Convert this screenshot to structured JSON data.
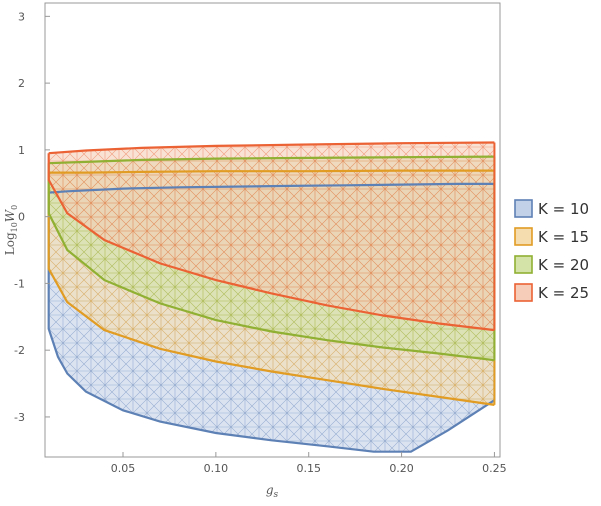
{
  "chart_data": {
    "type": "area",
    "xlabel": "g",
    "xlabel_sub": "s",
    "ylabel_prefix": "Log",
    "ylabel_sub": "10",
    "ylabel_var": "W",
    "ylabel_var_sub": "0",
    "xlim": [
      0.008,
      0.253
    ],
    "ylim": [
      -3.6,
      3.2
    ],
    "x_ticks": [
      0.05,
      0.1,
      0.15,
      0.2,
      0.25
    ],
    "x_tick_labels": [
      "0.05",
      "0.10",
      "0.15",
      "0.20",
      "0.25"
    ],
    "y_ticks": [
      -3,
      -2,
      -1,
      0,
      1,
      2,
      3
    ],
    "y_tick_labels": [
      "-3",
      "-2",
      "-1",
      "0",
      "1",
      "2",
      "3"
    ],
    "legend_position": "right",
    "series": [
      {
        "name": "K = 10",
        "color": "#5e81b5",
        "fill": "#c3d1e8",
        "upper": {
          "x": [
            0.01,
            0.02,
            0.05,
            0.08,
            0.11,
            0.14,
            0.17,
            0.2,
            0.23,
            0.25
          ],
          "y": [
            0.36,
            0.38,
            0.42,
            0.44,
            0.45,
            0.46,
            0.47,
            0.48,
            0.49,
            0.49
          ]
        },
        "lower": {
          "x": [
            0.01,
            0.01,
            0.015,
            0.02,
            0.03,
            0.05,
            0.07,
            0.1,
            0.13,
            0.16,
            0.185,
            0.205,
            0.225,
            0.25
          ],
          "y": [
            0.36,
            -1.68,
            -2.1,
            -2.35,
            -2.62,
            -2.9,
            -3.07,
            -3.24,
            -3.35,
            -3.44,
            -3.52,
            -3.52,
            -3.2,
            -2.75
          ]
        }
      },
      {
        "name": "K = 15",
        "color": "#e19c24",
        "fill": "#f5ddb0",
        "upper": {
          "x": [
            0.01,
            0.03,
            0.06,
            0.1,
            0.15,
            0.2,
            0.25
          ],
          "y": [
            0.66,
            0.66,
            0.67,
            0.68,
            0.68,
            0.69,
            0.69
          ]
        },
        "lower": {
          "x": [
            0.01,
            0.01,
            0.02,
            0.04,
            0.07,
            0.1,
            0.13,
            0.16,
            0.19,
            0.22,
            0.25
          ],
          "y": [
            0.66,
            -0.78,
            -1.28,
            -1.7,
            -1.98,
            -2.17,
            -2.32,
            -2.45,
            -2.58,
            -2.7,
            -2.82
          ]
        }
      },
      {
        "name": "K = 20",
        "color": "#8fb032",
        "fill": "#d4e3a8",
        "upper": {
          "x": [
            0.01,
            0.03,
            0.06,
            0.1,
            0.15,
            0.2,
            0.25
          ],
          "y": [
            0.8,
            0.82,
            0.85,
            0.87,
            0.88,
            0.89,
            0.9
          ]
        },
        "lower": {
          "x": [
            0.01,
            0.01,
            0.02,
            0.04,
            0.07,
            0.1,
            0.13,
            0.16,
            0.19,
            0.22,
            0.25
          ],
          "y": [
            0.8,
            0.05,
            -0.5,
            -0.95,
            -1.3,
            -1.55,
            -1.72,
            -1.85,
            -1.96,
            -2.05,
            -2.15
          ]
        }
      },
      {
        "name": "K = 25",
        "color": "#eb6235",
        "fill": "#f5cdb8",
        "upper": {
          "x": [
            0.01,
            0.03,
            0.06,
            0.1,
            0.15,
            0.2,
            0.25
          ],
          "y": [
            0.95,
            0.99,
            1.03,
            1.06,
            1.08,
            1.1,
            1.11
          ]
        },
        "lower": {
          "x": [
            0.01,
            0.01,
            0.02,
            0.04,
            0.07,
            0.1,
            0.13,
            0.16,
            0.19,
            0.22,
            0.25
          ],
          "y": [
            0.95,
            0.55,
            0.05,
            -0.35,
            -0.7,
            -0.95,
            -1.15,
            -1.33,
            -1.48,
            -1.6,
            -1.7
          ]
        }
      }
    ]
  }
}
